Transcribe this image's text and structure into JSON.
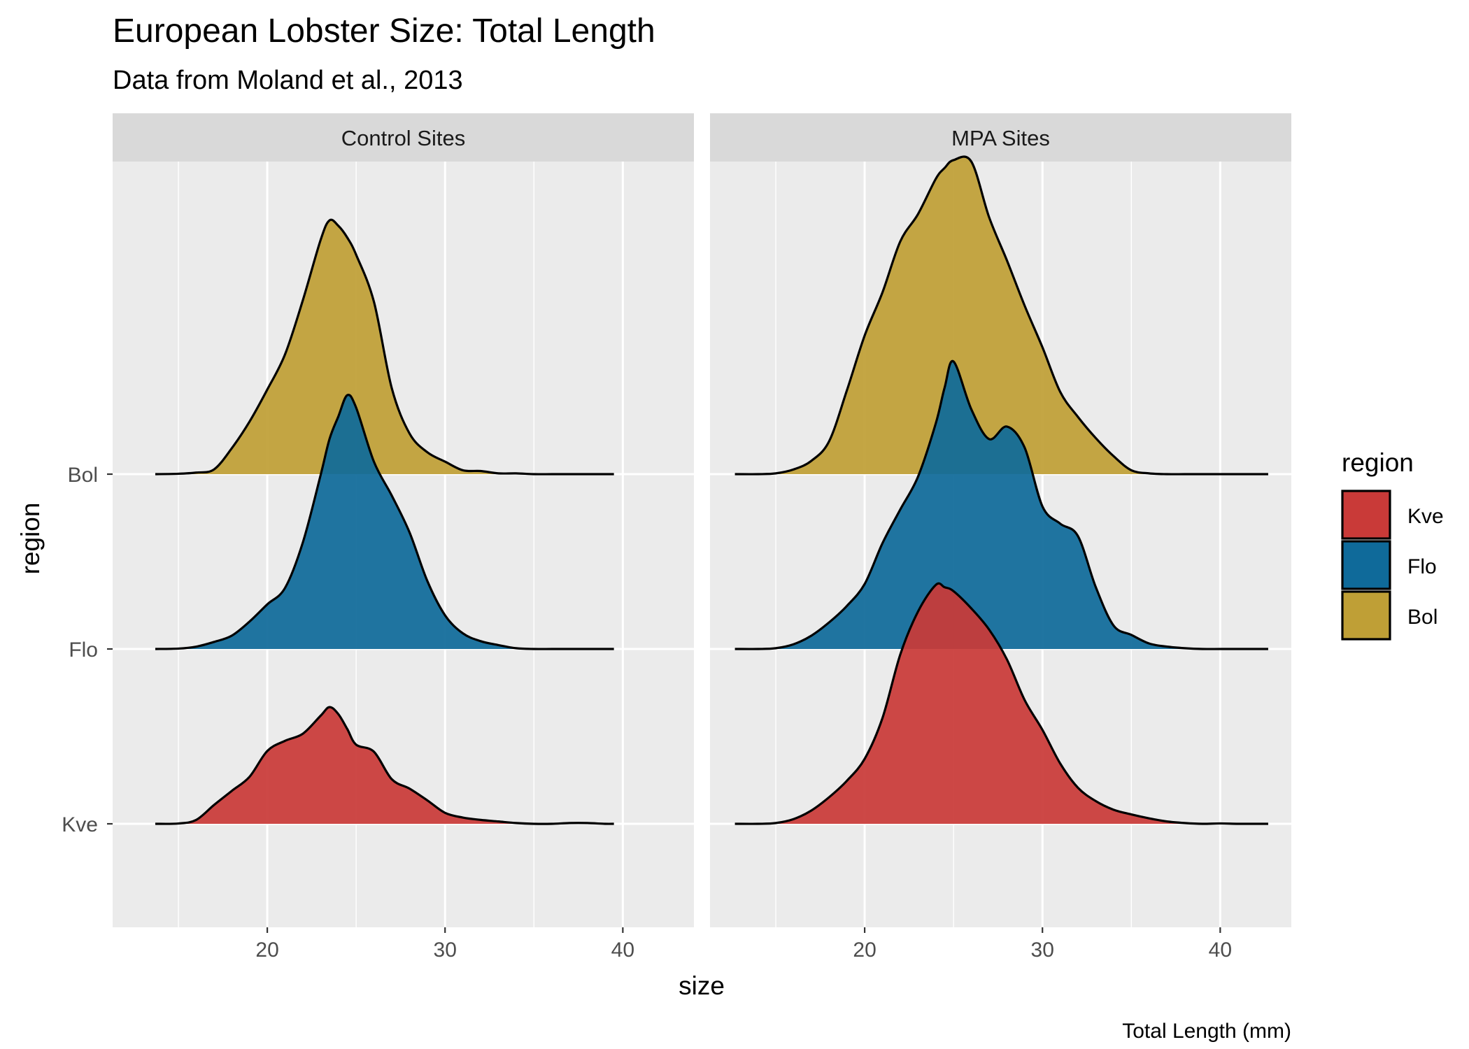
{
  "chart_data": {
    "type": "ridgeline-density",
    "title": "European Lobster Size: Total Length",
    "subtitle": "Data from Moland et al., 2013",
    "xlabel": "size",
    "ylabel": "region",
    "caption": "Total Length (mm)",
    "xlim": [
      11.3,
      44
    ],
    "x_ticks": [
      20,
      30,
      40
    ],
    "y_categories": [
      "Kve",
      "Flo",
      "Bol"
    ],
    "legend": {
      "title": "region",
      "position": "right",
      "entries": [
        {
          "label": "Kve",
          "color": "#C93A38"
        },
        {
          "label": "Flo",
          "color": "#0F6A9A"
        },
        {
          "label": "Bol",
          "color": "#BF9F36"
        }
      ]
    },
    "grid": true,
    "panels": [
      {
        "label": "Control Sites",
        "series": [
          {
            "name": "Kve",
            "x": [
              13.7,
              15,
              16,
              17,
              18,
              19,
              20,
              21,
              22,
              23,
              23.5,
              24,
              24.5,
              25,
              26,
              27,
              28,
              29,
              30,
              31,
              32,
              33,
              34,
              35,
              36,
              37,
              38,
              39,
              39.5
            ],
            "height": [
              0,
              0.004,
              0.05,
              0.24,
              0.42,
              0.6,
              0.93,
              1.06,
              1.15,
              1.38,
              1.49,
              1.4,
              1.21,
              1.01,
              0.92,
              0.57,
              0.45,
              0.3,
              0.14,
              0.08,
              0.05,
              0.03,
              0.01,
              0,
              0,
              0.01,
              0.01,
              0,
              0
            ]
          },
          {
            "name": "Flo",
            "x": [
              13.7,
              15,
              16,
              17,
              18,
              19,
              20,
              21,
              22,
              23,
              23.5,
              24,
              24.5,
              25,
              26,
              27,
              28,
              29,
              30,
              31,
              32,
              33,
              34,
              35,
              36,
              37,
              38,
              39,
              39.5
            ],
            "height": [
              0,
              0.005,
              0.03,
              0.09,
              0.17,
              0.35,
              0.57,
              0.78,
              1.36,
              2.22,
              2.68,
              2.97,
              3.24,
              3.08,
              2.39,
              1.96,
              1.49,
              0.87,
              0.43,
              0.2,
              0.1,
              0.05,
              0.01,
              0,
              0,
              0,
              0,
              0,
              0
            ]
          },
          {
            "name": "Bol",
            "x": [
              13.7,
              15,
              16,
              17,
              18,
              19,
              20,
              21,
              22,
              23,
              23.5,
              24,
              24.5,
              25,
              26,
              27,
              28,
              29,
              30,
              31,
              32,
              33,
              34,
              35,
              36,
              37,
              38,
              39,
              39.5
            ],
            "height": [
              0,
              0.005,
              0.02,
              0.06,
              0.33,
              0.67,
              1.08,
              1.53,
              2.22,
              2.99,
              3.24,
              3.17,
              3.02,
              2.8,
              2.2,
              1.1,
              0.52,
              0.28,
              0.16,
              0.05,
              0.04,
              0.01,
              0.01,
              0,
              0,
              0,
              0,
              0,
              0
            ]
          }
        ]
      },
      {
        "label": "MPA Sites",
        "series": [
          {
            "name": "Kve",
            "x": [
              12.7,
              14,
              15,
              16,
              17,
              18,
              19,
              20,
              21,
              22,
              23,
              24,
              24.5,
              25,
              26,
              27,
              28,
              29,
              30,
              31,
              32,
              33,
              34,
              35,
              36,
              37,
              38,
              39,
              40,
              41,
              42,
              42.7
            ],
            "height": [
              0,
              0,
              0.01,
              0.06,
              0.17,
              0.34,
              0.55,
              0.83,
              1.35,
              2.16,
              2.71,
              3.05,
              3.02,
              2.97,
              2.75,
              2.48,
              2.1,
              1.58,
              1.2,
              0.77,
              0.46,
              0.29,
              0.18,
              0.12,
              0.07,
              0.03,
              0.01,
              0,
              0.005,
              0,
              0,
              0
            ]
          },
          {
            "name": "Flo",
            "x": [
              12.7,
              14,
              15,
              16,
              17,
              18,
              19,
              20,
              21,
              22,
              23,
              24,
              24.5,
              25,
              26,
              27,
              28,
              29,
              30,
              31,
              32,
              33,
              34,
              35,
              36,
              37,
              38,
              39,
              40,
              41,
              42,
              42.7
            ],
            "height": [
              0,
              0,
              0.01,
              0.06,
              0.17,
              0.34,
              0.55,
              0.83,
              1.35,
              1.78,
              2.2,
              2.88,
              3.34,
              3.67,
              3.06,
              2.68,
              2.84,
              2.57,
              1.82,
              1.6,
              1.44,
              0.79,
              0.3,
              0.18,
              0.07,
              0.03,
              0.01,
              0,
              0,
              0,
              0,
              0
            ]
          },
          {
            "name": "Bol",
            "x": [
              12.7,
              14,
              15,
              16,
              17,
              18,
              19,
              20,
              21,
              22,
              23,
              24,
              24.5,
              25,
              26,
              27,
              28,
              29,
              30,
              31,
              32,
              33,
              34,
              35,
              36,
              37,
              38,
              39,
              40,
              41,
              42,
              42.7
            ],
            "height": [
              0,
              0,
              0.01,
              0.06,
              0.17,
              0.42,
              1.07,
              1.77,
              2.32,
              2.97,
              3.32,
              3.77,
              3.91,
              4.01,
              3.99,
              3.28,
              2.73,
              2.15,
              1.62,
              1.05,
              0.73,
              0.46,
              0.23,
              0.05,
              0.01,
              0,
              0,
              0,
              0,
              0,
              0,
              0
            ]
          }
        ]
      }
    ]
  }
}
